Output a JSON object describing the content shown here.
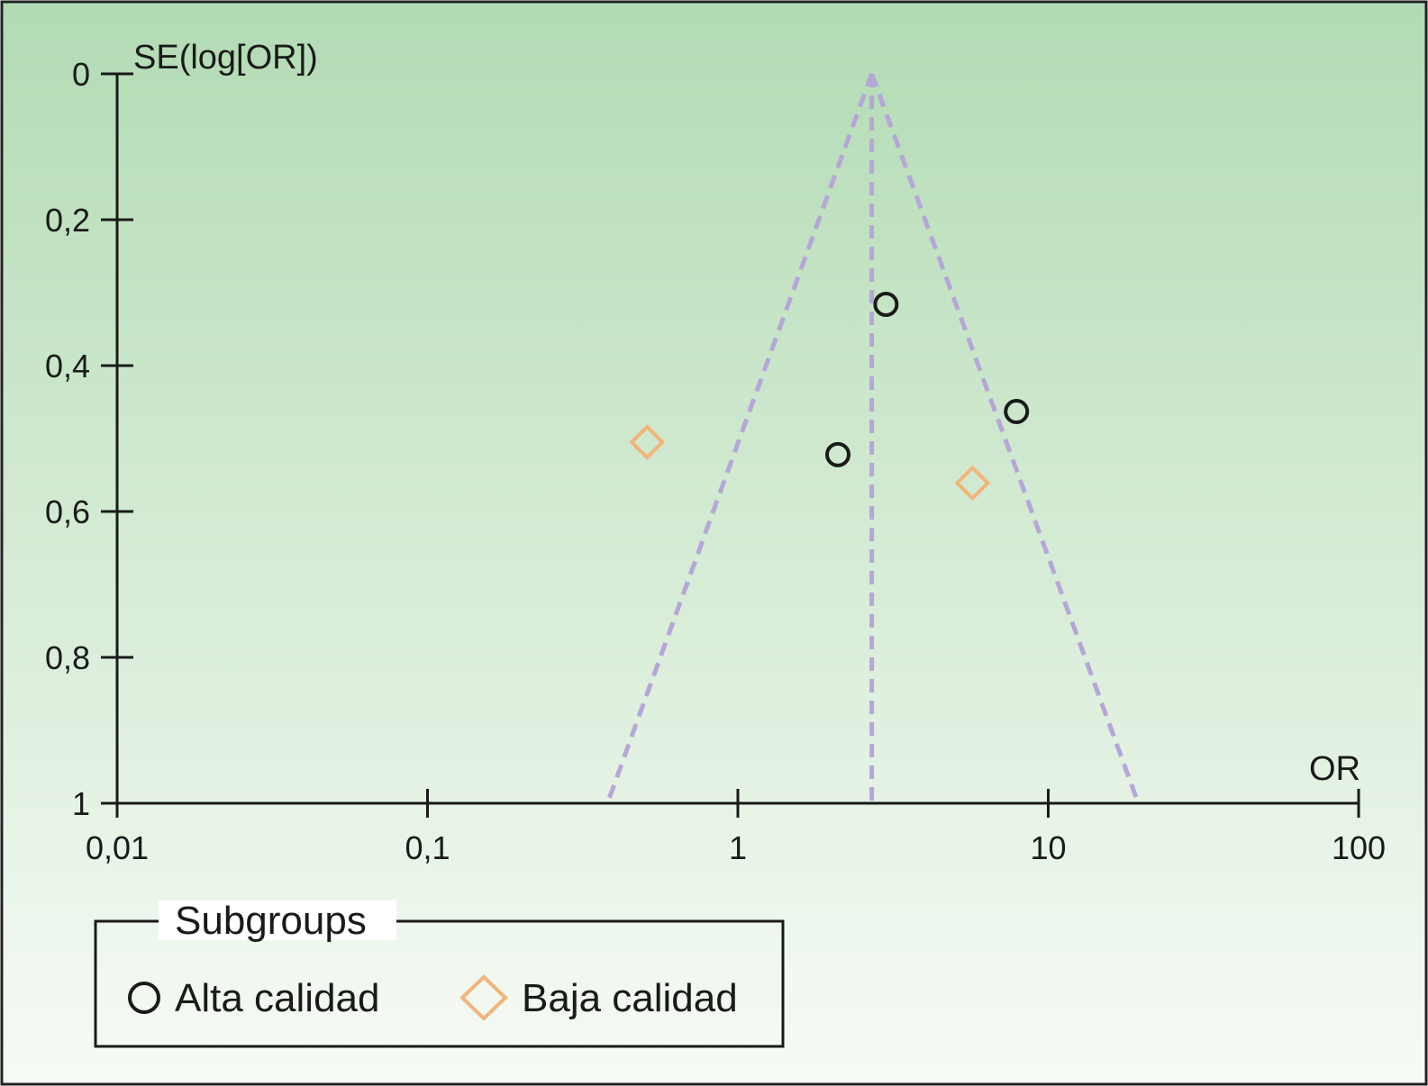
{
  "chart_data": {
    "type": "scatter",
    "title": "",
    "xlabel": "OR",
    "ylabel": "SE(log[OR])",
    "x_scale": "log",
    "xlim": [
      0.01,
      100
    ],
    "ylim": [
      0,
      1
    ],
    "y_inverted": true,
    "x_ticks": [
      {
        "value": 0.01,
        "label": "0,01"
      },
      {
        "value": 0.1,
        "label": "0,1"
      },
      {
        "value": 1,
        "label": "1"
      },
      {
        "value": 10,
        "label": "10"
      },
      {
        "value": 100,
        "label": "100"
      }
    ],
    "y_ticks": [
      {
        "value": 0,
        "label": "0"
      },
      {
        "value": 0.2,
        "label": "0,2"
      },
      {
        "value": 0.4,
        "label": "0,4"
      },
      {
        "value": 0.6,
        "label": "0,6"
      },
      {
        "value": 0.8,
        "label": "0,8"
      },
      {
        "value": 1,
        "label": "1"
      }
    ],
    "series": [
      {
        "name": "Alta calidad",
        "marker": "circle",
        "color": "#1a1a1a",
        "points": [
          {
            "x": 3.0,
            "y": 0.316
          },
          {
            "x": 7.9,
            "y": 0.463
          },
          {
            "x": 2.1,
            "y": 0.522
          }
        ]
      },
      {
        "name": "Baja calidad",
        "marker": "diamond",
        "color": "#f2b47a",
        "points": [
          {
            "x": 0.51,
            "y": 0.505
          },
          {
            "x": 5.7,
            "y": 0.561
          }
        ]
      }
    ],
    "pooled_or": 2.7,
    "funnel_bounds_at_se_1": [
      0.38,
      19.5
    ],
    "funnel_color": "#b7a6d8",
    "background_gradient": [
      "#b2dbb3",
      "#f7fbf6"
    ],
    "grid": false,
    "legend": {
      "title": "Subgroups",
      "placement": "bottom-left",
      "items": [
        {
          "label": "Alta calidad",
          "marker": "circle",
          "color": "#1a1a1a"
        },
        {
          "label": "Baja calidad",
          "marker": "diamond",
          "color": "#f2b47a"
        }
      ]
    }
  }
}
